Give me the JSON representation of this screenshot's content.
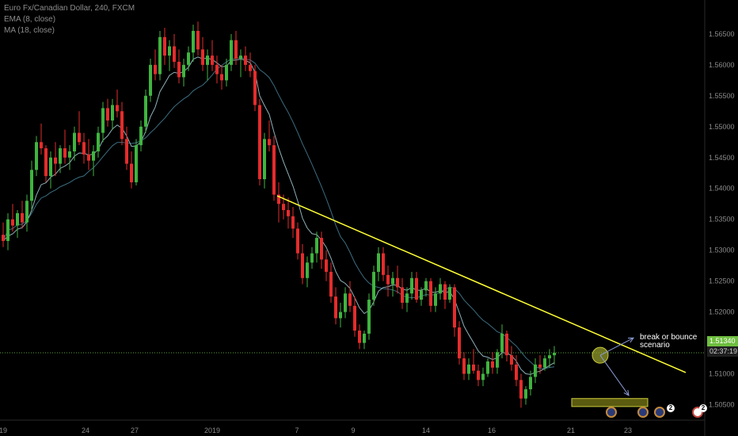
{
  "chart_data": {
    "type": "candlestick",
    "title": "Euro Fx/Canadian Dollar, 240, FXCM",
    "indicators": [
      "EMA (8, close)",
      "MA (18, close)"
    ],
    "ylim": [
      1.5025,
      1.5705
    ],
    "y_ticks": [
      "1.56500",
      "1.56000",
      "1.55500",
      "1.55000",
      "1.54500",
      "1.54000",
      "1.53500",
      "1.53000",
      "1.52500",
      "1.52000",
      "1.51500",
      "1.51000",
      "1.50500"
    ],
    "y_tick_values": [
      1.565,
      1.56,
      1.555,
      1.55,
      1.545,
      1.54,
      1.535,
      1.53,
      1.525,
      1.52,
      1.515,
      1.51,
      1.505
    ],
    "x_ticks": [
      "19",
      "24",
      "27",
      "2019",
      "7",
      "9",
      "14",
      "16",
      "21",
      "23"
    ],
    "current_price": "1.51340",
    "countdown": "02:37:19",
    "colors": {
      "up": "#3fb43f",
      "down": "#e52c2c",
      "ema": "#8fb0b8",
      "ma": "#3c6e80",
      "trendline": "#ffff33",
      "accent": "#c8c83a"
    },
    "candles": [
      [
        1.5325,
        1.5345,
        1.5305,
        1.5315
      ],
      [
        1.5315,
        1.536,
        1.53,
        1.535
      ],
      [
        1.535,
        1.5375,
        1.533,
        1.534
      ],
      [
        1.534,
        1.5365,
        1.532,
        1.536
      ],
      [
        1.536,
        1.538,
        1.5335,
        1.5345
      ],
      [
        1.5345,
        1.539,
        1.533,
        1.538
      ],
      [
        1.538,
        1.5445,
        1.5365,
        1.543
      ],
      [
        1.543,
        1.5485,
        1.542,
        1.5475
      ],
      [
        1.5475,
        1.5505,
        1.5455,
        1.5465
      ],
      [
        1.5465,
        1.547,
        1.541,
        1.542
      ],
      [
        1.542,
        1.546,
        1.54,
        1.545
      ],
      [
        1.545,
        1.5475,
        1.542,
        1.544
      ],
      [
        1.544,
        1.547,
        1.5425,
        1.5465
      ],
      [
        1.5465,
        1.5495,
        1.544,
        1.545
      ],
      [
        1.545,
        1.547,
        1.543,
        1.546
      ],
      [
        1.546,
        1.55,
        1.5445,
        1.549
      ],
      [
        1.549,
        1.5525,
        1.547,
        1.5475
      ],
      [
        1.5475,
        1.549,
        1.544,
        1.5455
      ],
      [
        1.5455,
        1.548,
        1.543,
        1.5445
      ],
      [
        1.5445,
        1.547,
        1.542,
        1.546
      ],
      [
        1.546,
        1.55,
        1.545,
        1.549
      ],
      [
        1.549,
        1.554,
        1.5475,
        1.553
      ],
      [
        1.553,
        1.5545,
        1.55,
        1.551
      ],
      [
        1.551,
        1.5545,
        1.5495,
        1.5535
      ],
      [
        1.5535,
        1.556,
        1.5515,
        1.5525
      ],
      [
        1.5525,
        1.554,
        1.547,
        1.548
      ],
      [
        1.548,
        1.55,
        1.543,
        1.544
      ],
      [
        1.544,
        1.546,
        1.54,
        1.541
      ],
      [
        1.541,
        1.548,
        1.5405,
        1.547
      ],
      [
        1.547,
        1.551,
        1.546,
        1.55
      ],
      [
        1.55,
        1.556,
        1.549,
        1.555
      ],
      [
        1.555,
        1.561,
        1.554,
        1.56
      ],
      [
        1.56,
        1.5625,
        1.5575,
        1.5585
      ],
      [
        1.5585,
        1.5655,
        1.5575,
        1.5645
      ],
      [
        1.5645,
        1.566,
        1.56,
        1.5615
      ],
      [
        1.5615,
        1.564,
        1.559,
        1.563
      ],
      [
        1.563,
        1.565,
        1.5595,
        1.5605
      ],
      [
        1.5605,
        1.5625,
        1.557,
        1.558
      ],
      [
        1.558,
        1.561,
        1.5565,
        1.56
      ],
      [
        1.56,
        1.563,
        1.559,
        1.562
      ],
      [
        1.562,
        1.5665,
        1.5605,
        1.5655
      ],
      [
        1.5655,
        1.567,
        1.5615,
        1.5625
      ],
      [
        1.5625,
        1.5645,
        1.559,
        1.56
      ],
      [
        1.56,
        1.5625,
        1.5575,
        1.5615
      ],
      [
        1.5615,
        1.564,
        1.559,
        1.56
      ],
      [
        1.56,
        1.5615,
        1.557,
        1.5585
      ],
      [
        1.5585,
        1.56,
        1.556,
        1.5575
      ],
      [
        1.5575,
        1.561,
        1.5565,
        1.56
      ],
      [
        1.56,
        1.565,
        1.559,
        1.564
      ],
      [
        1.564,
        1.5655,
        1.56,
        1.561
      ],
      [
        1.561,
        1.5625,
        1.558,
        1.5615
      ],
      [
        1.5615,
        1.563,
        1.559,
        1.56
      ],
      [
        1.56,
        1.562,
        1.558,
        1.559
      ],
      [
        1.559,
        1.56,
        1.5525,
        1.5535
      ],
      [
        1.5535,
        1.5545,
        1.5405,
        1.5415
      ],
      [
        1.5415,
        1.549,
        1.54,
        1.548
      ],
      [
        1.548,
        1.551,
        1.546,
        1.547
      ],
      [
        1.547,
        1.5485,
        1.538,
        1.539
      ],
      [
        1.539,
        1.541,
        1.5345,
        1.5375
      ],
      [
        1.5375,
        1.539,
        1.535,
        1.5365
      ],
      [
        1.5365,
        1.5385,
        1.5335,
        1.5355
      ],
      [
        1.5355,
        1.537,
        1.532,
        1.5335
      ],
      [
        1.5335,
        1.5345,
        1.5285,
        1.5295
      ],
      [
        1.5295,
        1.531,
        1.5245,
        1.5255
      ],
      [
        1.5255,
        1.529,
        1.524,
        1.528
      ],
      [
        1.528,
        1.5305,
        1.527,
        1.5295
      ],
      [
        1.5295,
        1.533,
        1.528,
        1.532
      ],
      [
        1.532,
        1.533,
        1.527,
        1.5285
      ],
      [
        1.5285,
        1.53,
        1.525,
        1.5265
      ],
      [
        1.5265,
        1.528,
        1.5215,
        1.5225
      ],
      [
        1.5225,
        1.524,
        1.518,
        1.519
      ],
      [
        1.519,
        1.5215,
        1.5175,
        1.52
      ],
      [
        1.52,
        1.524,
        1.519,
        1.523
      ],
      [
        1.523,
        1.525,
        1.52,
        1.521
      ],
      [
        1.521,
        1.5225,
        1.516,
        1.517
      ],
      [
        1.517,
        1.518,
        1.514,
        1.515
      ],
      [
        1.515,
        1.517,
        1.514,
        1.5165
      ],
      [
        1.5165,
        1.523,
        1.5155,
        1.522
      ],
      [
        1.522,
        1.5275,
        1.521,
        1.5265
      ],
      [
        1.5265,
        1.5305,
        1.525,
        1.5295
      ],
      [
        1.5295,
        1.5305,
        1.525,
        1.526
      ],
      [
        1.526,
        1.5275,
        1.5225,
        1.5245
      ],
      [
        1.5245,
        1.5265,
        1.5225,
        1.5255
      ],
      [
        1.5255,
        1.5275,
        1.523,
        1.524
      ],
      [
        1.524,
        1.5255,
        1.5205,
        1.5215
      ],
      [
        1.5215,
        1.524,
        1.52,
        1.523
      ],
      [
        1.523,
        1.5265,
        1.522,
        1.5255
      ],
      [
        1.5255,
        1.5265,
        1.5215,
        1.522
      ],
      [
        1.522,
        1.524,
        1.521,
        1.5235
      ],
      [
        1.5235,
        1.5255,
        1.5225,
        1.525
      ],
      [
        1.525,
        1.5255,
        1.52,
        1.521
      ],
      [
        1.521,
        1.524,
        1.52,
        1.523
      ],
      [
        1.523,
        1.5255,
        1.522,
        1.5245
      ],
      [
        1.5245,
        1.525,
        1.5205,
        1.522
      ],
      [
        1.522,
        1.5245,
        1.5215,
        1.524
      ],
      [
        1.524,
        1.5245,
        1.516,
        1.5175
      ],
      [
        1.5175,
        1.5185,
        1.5115,
        1.5125
      ],
      [
        1.5125,
        1.5135,
        1.509,
        1.51
      ],
      [
        1.51,
        1.5125,
        1.509,
        1.5115
      ],
      [
        1.5115,
        1.514,
        1.51,
        1.5105
      ],
      [
        1.5105,
        1.5115,
        1.508,
        1.509
      ],
      [
        1.509,
        1.511,
        1.508,
        1.51
      ],
      [
        1.51,
        1.5125,
        1.5095,
        1.512
      ],
      [
        1.512,
        1.5135,
        1.51,
        1.511
      ],
      [
        1.511,
        1.514,
        1.51,
        1.5135
      ],
      [
        1.5135,
        1.518,
        1.5125,
        1.5165
      ],
      [
        1.5165,
        1.517,
        1.512,
        1.513
      ],
      [
        1.513,
        1.5145,
        1.5105,
        1.5115
      ],
      [
        1.5115,
        1.513,
        1.508,
        1.509
      ],
      [
        1.509,
        1.51,
        1.5045,
        1.506
      ],
      [
        1.506,
        1.508,
        1.505,
        1.5075
      ],
      [
        1.5075,
        1.5105,
        1.5065,
        1.5095
      ],
      [
        1.5095,
        1.5125,
        1.5085,
        1.5115
      ],
      [
        1.5115,
        1.513,
        1.51,
        1.511
      ],
      [
        1.511,
        1.513,
        1.5105,
        1.5125
      ],
      [
        1.5125,
        1.514,
        1.511,
        1.513
      ],
      [
        1.513,
        1.5145,
        1.5115,
        1.5134
      ]
    ],
    "annotations": {
      "trendline": {
        "from": {
          "bar": 58,
          "price": 1.5388
        },
        "to": {
          "bar": 144,
          "price": 1.5102
        }
      },
      "highlight_zone": {
        "bar_from": 120,
        "bar_to": 136,
        "price_low": 1.5047,
        "price_high": 1.506
      },
      "circle": {
        "bar": 126,
        "price": 1.513
      },
      "arrows": [
        {
          "to_bar": 133,
          "to_price": 1.5158
        },
        {
          "to_bar": 132,
          "to_price": 1.5065
        }
      ],
      "text": [
        "break or bounce",
        "scenario"
      ]
    }
  },
  "events": [
    {
      "icon": "flag-icon"
    },
    {
      "icon": "flag-icon"
    },
    {
      "icon": "flag-icon",
      "badge": "2"
    },
    {
      "icon": "flag-icon",
      "badge": "2"
    }
  ]
}
